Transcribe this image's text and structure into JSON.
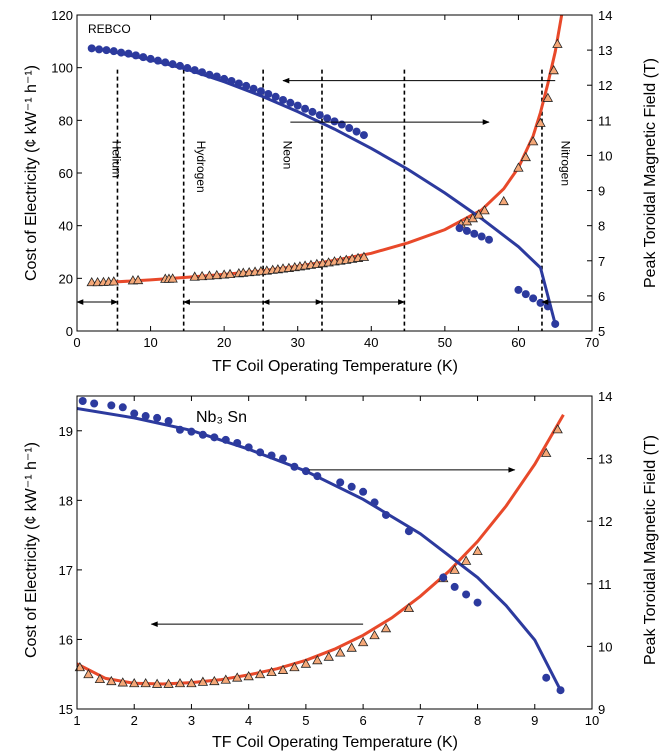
{
  "chart_data": [
    {
      "type": "line",
      "annotation": "REBCO",
      "xlabel": "TF Coil Operating Temperature (K)",
      "ylabel": "Cost of Electricity (¢ kW⁻¹ h⁻¹)",
      "y2label": "Peak Toroidal Magnetic Field (T)",
      "xlim": [
        0,
        70
      ],
      "ylim": [
        0,
        120
      ],
      "y2lim": [
        5,
        14
      ],
      "xticks": [
        0,
        10,
        20,
        30,
        40,
        50,
        60,
        70
      ],
      "yticks": [
        0,
        20,
        40,
        60,
        80,
        100,
        120
      ],
      "y2ticks": [
        5,
        6,
        7,
        8,
        9,
        10,
        11,
        12,
        13,
        14
      ],
      "grid": false,
      "coolant_lines": [
        5.5,
        14.5,
        25.3,
        33.3,
        44.5,
        63.2
      ],
      "coolant_labels": [
        {
          "text": "Helium",
          "x": 4.3
        },
        {
          "text": "Hydrogen",
          "x": 15.8
        },
        {
          "text": "Neon",
          "x": 27.5
        },
        {
          "text": "Nitrogen",
          "x": 65.3
        }
      ],
      "series": [
        {
          "axis": "left",
          "color": "#e8492a",
          "marker": "triangle",
          "marker_face": "#f5a878",
          "fit_x": [
            2,
            5,
            10,
            15,
            20,
            25,
            30,
            35,
            40,
            45,
            50,
            55,
            58,
            60,
            62,
            63,
            64,
            65,
            66
          ],
          "fit_y": [
            18,
            18.6,
            19.4,
            20.4,
            21.5,
            22.8,
            24.6,
            26.8,
            29.5,
            33.5,
            38.5,
            46,
            54,
            62,
            74,
            83,
            94,
            106,
            122
          ],
          "points_x": [
            2,
            2.8,
            3.6,
            4.3,
            5,
            7.6,
            8.3,
            12,
            12.5,
            13,
            16,
            17,
            18,
            19,
            20,
            20.8,
            22,
            22.6,
            23.4,
            24.2,
            25,
            25.8,
            26.6,
            27.3,
            28,
            28.8,
            29.6,
            30.3,
            31,
            31.8,
            32.6,
            33.4,
            34.2,
            35,
            35.8,
            36.6,
            37.4,
            38.2,
            39,
            52.2,
            53,
            53.8,
            54.6,
            55.4,
            58,
            60,
            61,
            62,
            63,
            64,
            64.8,
            65.3
          ],
          "points_y": [
            18.5,
            18.5,
            18.6,
            18.7,
            18.8,
            19.2,
            19.3,
            19.8,
            19.8,
            19.9,
            20.6,
            20.8,
            21.0,
            21.2,
            21.4,
            21.6,
            21.9,
            22.1,
            22.3,
            22.5,
            22.7,
            22.9,
            23.2,
            23.4,
            23.7,
            23.9,
            24.2,
            24.5,
            24.8,
            25.1,
            25.4,
            25.7,
            26.0,
            26.4,
            26.7,
            27.0,
            27.4,
            27.7,
            28.1,
            40.5,
            41.6,
            42.8,
            44.2,
            45.8,
            49.3,
            62,
            66,
            72,
            79,
            88.5,
            99,
            109
          ]
        },
        {
          "axis": "right",
          "color": "#2c3a9e",
          "marker": "circle",
          "marker_face": "#2c3a9e",
          "fit_x": [
            2,
            5,
            10,
            15,
            20,
            25,
            30,
            35,
            40,
            45,
            50,
            55,
            60,
            63,
            65
          ],
          "fit_y": [
            13.05,
            12.95,
            12.72,
            12.45,
            12.1,
            11.7,
            11.25,
            10.75,
            10.2,
            9.6,
            8.93,
            8.2,
            7.4,
            6.8,
            5.2
          ],
          "points_x": [
            2,
            3,
            4,
            5,
            6,
            7,
            8,
            9,
            10,
            11,
            12,
            13,
            14,
            15,
            16,
            17,
            18,
            19,
            20,
            21,
            22,
            23,
            24,
            25,
            26,
            27,
            28,
            29,
            30,
            31,
            32,
            33,
            34,
            35,
            36,
            37,
            38,
            39,
            52,
            53,
            54,
            55,
            56,
            60,
            61,
            62,
            63,
            64,
            65
          ],
          "points_y": [
            13.05,
            13.02,
            13.0,
            12.97,
            12.93,
            12.9,
            12.85,
            12.8,
            12.75,
            12.7,
            12.65,
            12.6,
            12.55,
            12.49,
            12.43,
            12.37,
            12.3,
            12.25,
            12.18,
            12.12,
            12.05,
            11.98,
            11.9,
            11.83,
            11.75,
            11.67,
            11.58,
            11.5,
            11.42,
            11.33,
            11.24,
            11.15,
            11.06,
            10.97,
            10.88,
            10.78,
            10.68,
            10.58,
            7.93,
            7.85,
            7.77,
            7.69,
            7.6,
            6.17,
            6.05,
            5.93,
            5.8,
            5.7,
            5.2
          ]
        }
      ],
      "arrows": [
        {
          "axis": "right",
          "y": 12.13,
          "x1": 65,
          "x2": 28,
          "dir": "left"
        },
        {
          "axis": "right",
          "y": 10.95,
          "x1": 29,
          "x2": 56,
          "dir": "right"
        },
        {
          "axis": "left",
          "y": 11,
          "x1": 0,
          "x2": 5.5,
          "dir": "both"
        },
        {
          "axis": "left",
          "y": 11,
          "x1": 14.5,
          "x2": 33.3,
          "dir": "both"
        },
        {
          "axis": "left",
          "y": 11,
          "x1": 25.3,
          "x2": 44.5,
          "dir": "both"
        },
        {
          "axis": "left",
          "y": 11,
          "x1": 70,
          "x2": 63.2,
          "dir": "left"
        }
      ]
    },
    {
      "type": "line",
      "annotation": "Nb₃ Sn",
      "xlabel": "TF Coil Operating Temperature (K)",
      "ylabel": "Cost of Electricity (¢ kW⁻¹ h⁻¹)",
      "y2label": "Peak Toroidal Magnetic Field (T)",
      "xlim": [
        1,
        10
      ],
      "ylim": [
        15,
        19.5
      ],
      "y2lim": [
        9,
        14
      ],
      "xticks": [
        1,
        2,
        3,
        4,
        5,
        6,
        7,
        8,
        9,
        10
      ],
      "yticks": [
        15,
        16,
        17,
        18,
        19
      ],
      "y2ticks": [
        9,
        10,
        11,
        12,
        13,
        14
      ],
      "grid": false,
      "series": [
        {
          "axis": "left",
          "color": "#e8492a",
          "marker": "triangle",
          "marker_face": "#f5a878",
          "fit_x": [
            1,
            1.5,
            2,
            2.5,
            3,
            3.5,
            4,
            4.5,
            5,
            5.5,
            6,
            6.5,
            7,
            7.5,
            8,
            8.5,
            9,
            9.5
          ],
          "fit_y": [
            15.65,
            15.44,
            15.37,
            15.36,
            15.38,
            15.42,
            15.49,
            15.58,
            15.7,
            15.86,
            16.06,
            16.31,
            16.62,
            16.98,
            17.41,
            17.92,
            18.52,
            19.23
          ],
          "points_x": [
            1.05,
            1.2,
            1.4,
            1.6,
            1.8,
            2.0,
            2.2,
            2.4,
            2.6,
            2.8,
            3.0,
            3.2,
            3.4,
            3.6,
            3.8,
            4.0,
            4.2,
            4.4,
            4.6,
            4.8,
            5.0,
            5.2,
            5.4,
            5.6,
            5.8,
            6.0,
            6.2,
            6.4,
            6.8,
            7.4,
            7.6,
            7.8,
            8.0,
            9.2,
            9.4
          ],
          "points_y": [
            15.6,
            15.5,
            15.43,
            15.4,
            15.38,
            15.37,
            15.37,
            15.36,
            15.36,
            15.37,
            15.37,
            15.39,
            15.4,
            15.42,
            15.45,
            15.47,
            15.5,
            15.53,
            15.56,
            15.6,
            15.65,
            15.7,
            15.75,
            15.81,
            15.88,
            15.96,
            16.06,
            16.16,
            16.45,
            16.88,
            17.0,
            17.13,
            17.27,
            18.68,
            19.02
          ]
        },
        {
          "axis": "right",
          "color": "#2c3a9e",
          "marker": "circle",
          "marker_face": "#2c3a9e",
          "fit_x": [
            1,
            2,
            3,
            4,
            5,
            6,
            7,
            8,
            8.5,
            9,
            9.45
          ],
          "fit_y": [
            13.8,
            13.65,
            13.45,
            13.15,
            12.8,
            12.35,
            11.8,
            11.1,
            10.65,
            10.1,
            9.3
          ],
          "points_x": [
            1.1,
            1.3,
            1.6,
            1.8,
            2.0,
            2.2,
            2.4,
            2.6,
            2.8,
            3.0,
            3.2,
            3.4,
            3.6,
            3.8,
            4.0,
            4.2,
            4.4,
            4.6,
            4.8,
            5.0,
            5.2,
            5.6,
            5.8,
            6.0,
            6.2,
            6.4,
            6.8,
            7.4,
            7.6,
            7.8,
            8.0,
            9.2,
            9.45
          ],
          "points_y": [
            13.92,
            13.88,
            13.85,
            13.82,
            13.72,
            13.68,
            13.65,
            13.6,
            13.46,
            13.43,
            13.38,
            13.34,
            13.3,
            13.25,
            13.18,
            13.1,
            13.05,
            13.0,
            12.87,
            12.8,
            12.72,
            12.62,
            12.55,
            12.47,
            12.3,
            12.1,
            11.84,
            11.1,
            10.95,
            10.83,
            10.7,
            9.5,
            9.3
          ]
        }
      ],
      "arrows": [
        {
          "axis": "right",
          "y": 12.82,
          "x1": 5.05,
          "x2": 8.65,
          "dir": "right"
        },
        {
          "axis": "left",
          "y": 16.22,
          "x1": 6.0,
          "x2": 2.3,
          "dir": "left"
        }
      ]
    }
  ]
}
